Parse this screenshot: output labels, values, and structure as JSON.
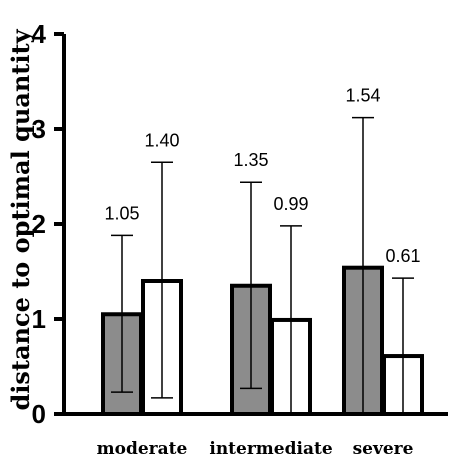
{
  "chart_data": {
    "type": "bar",
    "categories": [
      "moderate",
      "intermediate",
      "severe"
    ],
    "series": [
      {
        "color": "#8c8c8c",
        "values": [
          1.05,
          1.35,
          1.54
        ],
        "error_upper": [
          1.88,
          2.44,
          3.12
        ],
        "error_lower": [
          0.23,
          0.27,
          0.0
        ],
        "labels": [
          "1.05",
          "1.35",
          "1.54"
        ]
      },
      {
        "color": "#ffffff",
        "values": [
          1.4,
          0.99,
          0.61
        ],
        "error_upper": [
          2.65,
          1.98,
          1.43
        ],
        "error_lower": [
          0.17,
          0.0,
          0.0
        ],
        "labels": [
          "1.40",
          "0.99",
          "0.61"
        ]
      }
    ],
    "title": "",
    "xlabel": "",
    "ylabel": "distance to optimal quantity",
    "ylim": [
      0,
      4
    ],
    "yticks": [
      "0",
      "1",
      "2",
      "3",
      "4"
    ],
    "grid": false,
    "legend": "none"
  }
}
